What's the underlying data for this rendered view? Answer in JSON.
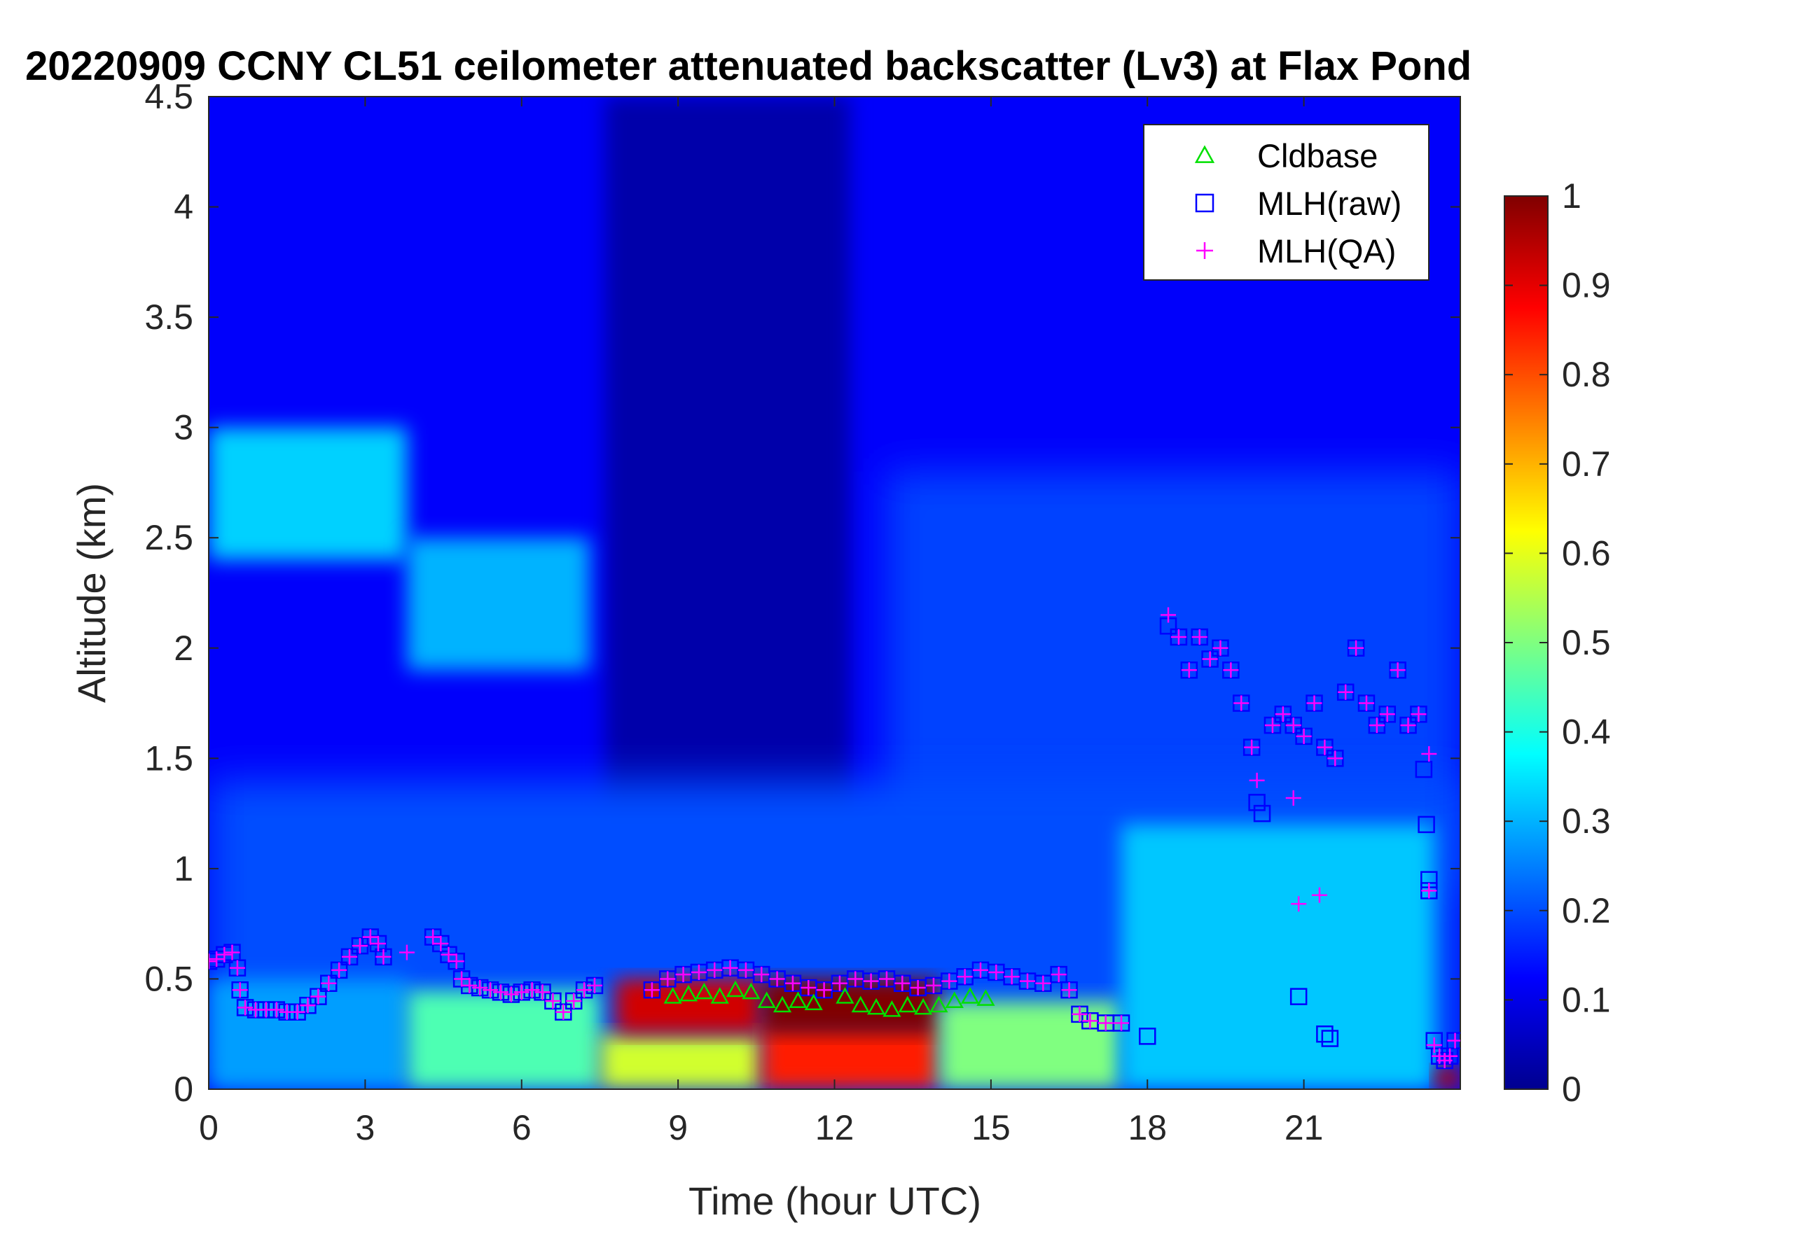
{
  "chart_data": {
    "type": "heatmap",
    "title": "20220909 CCNY CL51 ceilometer attenuated backscatter (Lv3) at Flax Pond",
    "xlabel": "Time (hour UTC)",
    "ylabel": "Altitude (km)",
    "xlim": [
      0,
      24
    ],
    "ylim": [
      0,
      4.5
    ],
    "x_ticks": [
      0,
      3,
      6,
      9,
      12,
      15,
      18,
      21
    ],
    "x_tick_labels": [
      "0",
      "3",
      "6",
      "9",
      "12",
      "15",
      "18",
      "21"
    ],
    "y_ticks": [
      0,
      0.5,
      1,
      1.5,
      2,
      2.5,
      3,
      3.5,
      4,
      4.5
    ],
    "y_tick_labels": [
      "0",
      "0.5",
      "1",
      "1.5",
      "2",
      "2.5",
      "3",
      "3.5",
      "4",
      "4.5"
    ],
    "colorbar": {
      "colormap": "jet",
      "clim": [
        0,
        1
      ],
      "ticks": [
        0,
        0.1,
        0.2,
        0.3,
        0.4,
        0.5,
        0.6,
        0.7,
        0.8,
        0.9,
        1
      ],
      "tick_labels": [
        "0",
        "0.1",
        "0.2",
        "0.3",
        "0.4",
        "0.5",
        "0.6",
        "0.7",
        "0.8",
        "0.9",
        "1"
      ]
    },
    "legend": {
      "placement": "top-right",
      "entries": [
        {
          "label": "Cldbase",
          "marker": "triangle",
          "color": "#00e000"
        },
        {
          "label": "MLH(raw)",
          "marker": "square",
          "color": "#0000ff"
        },
        {
          "label": "MLH(QA)",
          "marker": "plus",
          "color": "#ff00ff"
        }
      ]
    },
    "heatmap_features": [
      {
        "t0": 0.0,
        "t1": 3.8,
        "z0": 2.4,
        "z1": 3.0,
        "value": 0.33
      },
      {
        "t0": 3.8,
        "t1": 7.3,
        "z0": 1.9,
        "z1": 2.5,
        "value": 0.3
      },
      {
        "t0": 0.0,
        "t1": 3.8,
        "z0": 0.0,
        "z1": 0.5,
        "value": 0.28
      },
      {
        "t0": 3.8,
        "t1": 7.5,
        "z0": 0.0,
        "z1": 0.45,
        "value": 0.45
      },
      {
        "t0": 7.5,
        "t1": 10.6,
        "z0": 0.0,
        "z1": 0.25,
        "value": 0.58
      },
      {
        "t0": 7.8,
        "t1": 10.6,
        "z0": 0.25,
        "z1": 0.5,
        "value": 0.92
      },
      {
        "t0": 10.6,
        "t1": 14.0,
        "z0": 0.0,
        "z1": 0.3,
        "value": 0.85
      },
      {
        "t0": 10.6,
        "t1": 14.0,
        "z0": 0.25,
        "z1": 0.5,
        "value": 1.0
      },
      {
        "t0": 14.0,
        "t1": 17.5,
        "z0": 0.0,
        "z1": 0.4,
        "value": 0.5
      },
      {
        "t0": 17.5,
        "t1": 23.5,
        "z0": 0.0,
        "z1": 1.2,
        "value": 0.32
      },
      {
        "t0": 23.5,
        "t1": 24.0,
        "z0": 0.0,
        "z1": 0.1,
        "value": 0.95
      }
    ],
    "series": [
      {
        "name": "Cldbase",
        "marker": "triangle",
        "color": "#00e000",
        "points": [
          [
            8.9,
            0.42
          ],
          [
            9.2,
            0.43
          ],
          [
            9.5,
            0.44
          ],
          [
            9.8,
            0.42
          ],
          [
            10.1,
            0.45
          ],
          [
            10.4,
            0.44
          ],
          [
            10.7,
            0.4
          ],
          [
            11.0,
            0.38
          ],
          [
            11.3,
            0.4
          ],
          [
            11.6,
            0.39
          ],
          [
            12.2,
            0.42
          ],
          [
            12.5,
            0.38
          ],
          [
            12.8,
            0.37
          ],
          [
            13.1,
            0.36
          ],
          [
            13.4,
            0.38
          ],
          [
            13.7,
            0.37
          ],
          [
            14.0,
            0.38
          ],
          [
            14.3,
            0.4
          ],
          [
            14.6,
            0.42
          ],
          [
            14.9,
            0.41
          ]
        ]
      },
      {
        "name": "MLH(raw)",
        "marker": "square",
        "color": "#0000ff",
        "points": [
          [
            0.0,
            0.58
          ],
          [
            0.15,
            0.59
          ],
          [
            0.3,
            0.61
          ],
          [
            0.45,
            0.62
          ],
          [
            0.55,
            0.55
          ],
          [
            0.6,
            0.45
          ],
          [
            0.7,
            0.37
          ],
          [
            0.9,
            0.36
          ],
          [
            1.1,
            0.36
          ],
          [
            1.3,
            0.36
          ],
          [
            1.5,
            0.35
          ],
          [
            1.7,
            0.35
          ],
          [
            1.9,
            0.38
          ],
          [
            2.1,
            0.42
          ],
          [
            2.3,
            0.48
          ],
          [
            2.5,
            0.54
          ],
          [
            2.7,
            0.6
          ],
          [
            2.9,
            0.65
          ],
          [
            3.1,
            0.69
          ],
          [
            3.25,
            0.66
          ],
          [
            3.35,
            0.6
          ],
          [
            4.3,
            0.69
          ],
          [
            4.45,
            0.66
          ],
          [
            4.6,
            0.61
          ],
          [
            4.75,
            0.58
          ],
          [
            4.85,
            0.5
          ],
          [
            5.0,
            0.47
          ],
          [
            5.2,
            0.46
          ],
          [
            5.4,
            0.45
          ],
          [
            5.6,
            0.44
          ],
          [
            5.8,
            0.43
          ],
          [
            6.0,
            0.44
          ],
          [
            6.2,
            0.45
          ],
          [
            6.4,
            0.44
          ],
          [
            6.6,
            0.4
          ],
          [
            6.8,
            0.35
          ],
          [
            7.0,
            0.4
          ],
          [
            7.2,
            0.45
          ],
          [
            7.4,
            0.47
          ],
          [
            8.5,
            0.45
          ],
          [
            8.8,
            0.5
          ],
          [
            9.1,
            0.52
          ],
          [
            9.4,
            0.53
          ],
          [
            9.7,
            0.54
          ],
          [
            10.0,
            0.55
          ],
          [
            10.3,
            0.54
          ],
          [
            10.6,
            0.52
          ],
          [
            10.9,
            0.5
          ],
          [
            11.2,
            0.48
          ],
          [
            11.5,
            0.46
          ],
          [
            11.8,
            0.45
          ],
          [
            12.1,
            0.48
          ],
          [
            12.4,
            0.5
          ],
          [
            12.7,
            0.49
          ],
          [
            13.0,
            0.5
          ],
          [
            13.3,
            0.48
          ],
          [
            13.6,
            0.46
          ],
          [
            13.9,
            0.47
          ],
          [
            14.2,
            0.49
          ],
          [
            14.5,
            0.51
          ],
          [
            14.8,
            0.54
          ],
          [
            15.1,
            0.53
          ],
          [
            15.4,
            0.51
          ],
          [
            15.7,
            0.49
          ],
          [
            16.0,
            0.48
          ],
          [
            16.3,
            0.52
          ],
          [
            16.5,
            0.45
          ],
          [
            16.7,
            0.34
          ],
          [
            16.9,
            0.31
          ],
          [
            17.2,
            0.3
          ],
          [
            17.5,
            0.3
          ],
          [
            18.0,
            0.24
          ],
          [
            18.4,
            2.1
          ],
          [
            18.6,
            2.05
          ],
          [
            18.8,
            1.9
          ],
          [
            19.0,
            2.05
          ],
          [
            19.2,
            1.95
          ],
          [
            19.4,
            2.0
          ],
          [
            19.6,
            1.9
          ],
          [
            19.8,
            1.75
          ],
          [
            20.0,
            1.55
          ],
          [
            20.1,
            1.3
          ],
          [
            20.2,
            1.25
          ],
          [
            20.4,
            1.65
          ],
          [
            20.6,
            1.7
          ],
          [
            20.8,
            1.65
          ],
          [
            21.0,
            1.6
          ],
          [
            21.2,
            1.75
          ],
          [
            21.4,
            1.55
          ],
          [
            21.6,
            1.5
          ],
          [
            21.8,
            1.8
          ],
          [
            22.0,
            2.0
          ],
          [
            22.2,
            1.75
          ],
          [
            22.4,
            1.65
          ],
          [
            22.6,
            1.7
          ],
          [
            22.8,
            1.9
          ],
          [
            23.0,
            1.65
          ],
          [
            23.2,
            1.7
          ],
          [
            23.3,
            1.45
          ],
          [
            23.35,
            1.2
          ],
          [
            23.4,
            0.95
          ],
          [
            23.4,
            0.9
          ],
          [
            20.9,
            0.42
          ],
          [
            21.4,
            0.25
          ],
          [
            21.5,
            0.23
          ],
          [
            23.5,
            0.22
          ],
          [
            23.6,
            0.15
          ],
          [
            23.7,
            0.13
          ],
          [
            23.8,
            0.15
          ],
          [
            23.9,
            0.22
          ]
        ]
      },
      {
        "name": "MLH(QA)",
        "marker": "plus",
        "color": "#ff00ff",
        "points": [
          [
            0.0,
            0.58
          ],
          [
            0.15,
            0.59
          ],
          [
            0.3,
            0.61
          ],
          [
            0.45,
            0.62
          ],
          [
            0.55,
            0.55
          ],
          [
            0.6,
            0.45
          ],
          [
            0.7,
            0.37
          ],
          [
            0.9,
            0.36
          ],
          [
            1.1,
            0.36
          ],
          [
            1.3,
            0.36
          ],
          [
            1.5,
            0.35
          ],
          [
            1.7,
            0.35
          ],
          [
            1.9,
            0.38
          ],
          [
            2.1,
            0.42
          ],
          [
            2.3,
            0.48
          ],
          [
            2.5,
            0.54
          ],
          [
            2.7,
            0.6
          ],
          [
            2.9,
            0.65
          ],
          [
            3.1,
            0.69
          ],
          [
            3.25,
            0.66
          ],
          [
            3.35,
            0.6
          ],
          [
            3.8,
            0.62
          ],
          [
            4.3,
            0.69
          ],
          [
            4.45,
            0.66
          ],
          [
            4.6,
            0.61
          ],
          [
            4.75,
            0.58
          ],
          [
            4.85,
            0.5
          ],
          [
            5.0,
            0.47
          ],
          [
            5.2,
            0.46
          ],
          [
            5.4,
            0.45
          ],
          [
            5.6,
            0.44
          ],
          [
            5.8,
            0.43
          ],
          [
            6.0,
            0.44
          ],
          [
            6.2,
            0.45
          ],
          [
            6.4,
            0.44
          ],
          [
            6.6,
            0.4
          ],
          [
            6.8,
            0.35
          ],
          [
            7.0,
            0.4
          ],
          [
            7.2,
            0.45
          ],
          [
            7.4,
            0.47
          ],
          [
            8.5,
            0.45
          ],
          [
            8.8,
            0.5
          ],
          [
            9.1,
            0.52
          ],
          [
            9.4,
            0.53
          ],
          [
            9.7,
            0.54
          ],
          [
            10.0,
            0.55
          ],
          [
            10.3,
            0.54
          ],
          [
            10.6,
            0.52
          ],
          [
            10.9,
            0.5
          ],
          [
            11.2,
            0.48
          ],
          [
            11.5,
            0.46
          ],
          [
            11.8,
            0.45
          ],
          [
            12.1,
            0.48
          ],
          [
            12.4,
            0.5
          ],
          [
            12.7,
            0.49
          ],
          [
            13.0,
            0.5
          ],
          [
            13.3,
            0.48
          ],
          [
            13.6,
            0.46
          ],
          [
            13.9,
            0.47
          ],
          [
            14.2,
            0.49
          ],
          [
            14.5,
            0.51
          ],
          [
            14.8,
            0.54
          ],
          [
            15.1,
            0.53
          ],
          [
            15.4,
            0.51
          ],
          [
            15.7,
            0.49
          ],
          [
            16.0,
            0.48
          ],
          [
            16.3,
            0.52
          ],
          [
            16.5,
            0.45
          ],
          [
            16.7,
            0.34
          ],
          [
            16.9,
            0.31
          ],
          [
            17.2,
            0.3
          ],
          [
            17.5,
            0.3
          ],
          [
            18.4,
            2.15
          ],
          [
            18.6,
            2.05
          ],
          [
            18.8,
            1.9
          ],
          [
            19.0,
            2.05
          ],
          [
            19.2,
            1.95
          ],
          [
            19.4,
            2.0
          ],
          [
            19.6,
            1.9
          ],
          [
            19.8,
            1.75
          ],
          [
            20.0,
            1.55
          ],
          [
            20.1,
            1.4
          ],
          [
            20.4,
            1.65
          ],
          [
            20.6,
            1.7
          ],
          [
            20.8,
            1.65
          ],
          [
            20.8,
            1.32
          ],
          [
            20.9,
            0.84
          ],
          [
            21.0,
            1.6
          ],
          [
            21.2,
            1.75
          ],
          [
            21.3,
            0.88
          ],
          [
            21.4,
            1.55
          ],
          [
            21.6,
            1.5
          ],
          [
            21.8,
            1.8
          ],
          [
            22.0,
            2.0
          ],
          [
            22.2,
            1.75
          ],
          [
            22.4,
            1.65
          ],
          [
            22.6,
            1.7
          ],
          [
            22.8,
            1.9
          ],
          [
            23.0,
            1.65
          ],
          [
            23.2,
            1.7
          ],
          [
            23.4,
            1.52
          ],
          [
            23.4,
            0.9
          ],
          [
            23.5,
            0.2
          ],
          [
            23.6,
            0.15
          ],
          [
            23.7,
            0.13
          ],
          [
            23.8,
            0.15
          ],
          [
            23.9,
            0.22
          ]
        ]
      }
    ]
  }
}
